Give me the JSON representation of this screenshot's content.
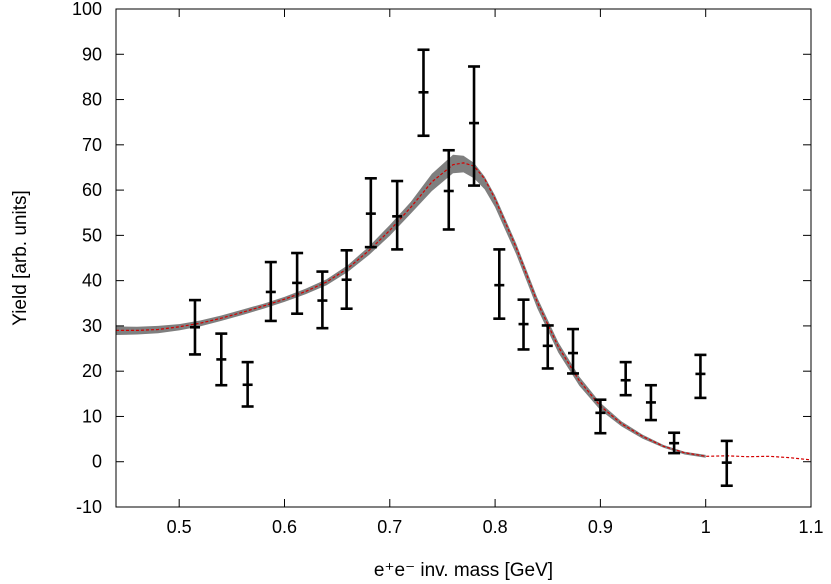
{
  "chart_data": {
    "type": "scatter",
    "title": "",
    "xlabel": "e⁺e⁻ inv. mass [GeV]",
    "ylabel": "Yield [arb. units]",
    "xlim": [
      0.44,
      1.1
    ],
    "ylim": [
      -10,
      100
    ],
    "x_ticks": [
      0.5,
      0.6,
      0.7,
      0.8,
      0.9,
      1,
      1.1
    ],
    "x_tick_labels": [
      "0.5",
      "0.6",
      "0.7",
      "0.8",
      "0.9",
      "1",
      "1.1"
    ],
    "y_ticks": [
      -10,
      0,
      10,
      20,
      30,
      40,
      50,
      60,
      70,
      80,
      90,
      100
    ],
    "y_tick_labels": [
      "-10",
      "0",
      "10",
      "20",
      "30",
      "40",
      "50",
      "60",
      "70",
      "80",
      "90",
      "100"
    ],
    "grid": false,
    "legend": "none",
    "points": [
      {
        "x": 0.515,
        "y": 29.7,
        "ylo": 23.7,
        "yhi": 35.7
      },
      {
        "x": 0.54,
        "y": 22.6,
        "ylo": 16.9,
        "yhi": 28.3
      },
      {
        "x": 0.565,
        "y": 17.0,
        "ylo": 12.2,
        "yhi": 22.0
      },
      {
        "x": 0.587,
        "y": 37.5,
        "ylo": 31.1,
        "yhi": 44.1
      },
      {
        "x": 0.612,
        "y": 39.5,
        "ylo": 32.7,
        "yhi": 46.1
      },
      {
        "x": 0.636,
        "y": 35.6,
        "ylo": 29.5,
        "yhi": 42.0
      },
      {
        "x": 0.659,
        "y": 40.2,
        "ylo": 33.8,
        "yhi": 46.7
      },
      {
        "x": 0.682,
        "y": 54.8,
        "ylo": 47.4,
        "yhi": 62.6
      },
      {
        "x": 0.707,
        "y": 54.2,
        "ylo": 46.9,
        "yhi": 62.0
      },
      {
        "x": 0.732,
        "y": 81.6,
        "ylo": 72.0,
        "yhi": 91.0
      },
      {
        "x": 0.756,
        "y": 59.8,
        "ylo": 51.3,
        "yhi": 68.8
      },
      {
        "x": 0.78,
        "y": 74.8,
        "ylo": 61.0,
        "yhi": 87.3
      },
      {
        "x": 0.804,
        "y": 39.0,
        "ylo": 31.6,
        "yhi": 46.9
      },
      {
        "x": 0.827,
        "y": 30.4,
        "ylo": 24.8,
        "yhi": 35.8
      },
      {
        "x": 0.85,
        "y": 25.6,
        "ylo": 20.6,
        "yhi": 30.1
      },
      {
        "x": 0.874,
        "y": 24.0,
        "ylo": 19.5,
        "yhi": 29.3
      },
      {
        "x": 0.9,
        "y": 10.8,
        "ylo": 6.3,
        "yhi": 13.7
      },
      {
        "x": 0.924,
        "y": 18.0,
        "ylo": 14.7,
        "yhi": 22.0
      },
      {
        "x": 0.948,
        "y": 13.1,
        "ylo": 9.2,
        "yhi": 16.9
      },
      {
        "x": 0.97,
        "y": 4.1,
        "ylo": 1.9,
        "yhi": 6.4
      },
      {
        "x": 0.995,
        "y": 19.4,
        "ylo": 14.1,
        "yhi": 23.6
      },
      {
        "x": 1.02,
        "y": -0.2,
        "ylo": -5.3,
        "yhi": 4.6
      }
    ],
    "band": {
      "color": "#7f7f7f",
      "x": [
        0.44,
        0.46,
        0.48,
        0.5,
        0.52,
        0.54,
        0.56,
        0.58,
        0.6,
        0.62,
        0.64,
        0.66,
        0.68,
        0.7,
        0.72,
        0.74,
        0.76,
        0.77,
        0.78,
        0.79,
        0.8,
        0.82,
        0.84,
        0.86,
        0.88,
        0.9,
        0.92,
        0.94,
        0.96,
        0.98,
        1.0
      ],
      "lower": [
        28.0,
        28.1,
        28.4,
        29.0,
        29.9,
        31.1,
        32.4,
        33.8,
        35.3,
        37.0,
        39.0,
        41.9,
        45.6,
        49.9,
        54.8,
        59.8,
        63.7,
        63.9,
        62.6,
        60.2,
        56.2,
        45.8,
        33.9,
        24.1,
        16.8,
        11.4,
        7.8,
        5.1,
        3.1,
        1.6,
        0.9
      ],
      "upper": [
        29.9,
        29.8,
        30.0,
        30.4,
        31.2,
        32.3,
        33.6,
        34.9,
        36.4,
        38.2,
        40.3,
        43.4,
        47.5,
        52.3,
        57.4,
        63.6,
        67.8,
        67.6,
        66.0,
        63.0,
        58.8,
        48.2,
        36.3,
        26.4,
        18.8,
        13.0,
        8.9,
        6.0,
        3.7,
        2.2,
        1.5
      ]
    },
    "curve": {
      "color": "#d40000",
      "style": "dashed",
      "x": [
        0.44,
        0.46,
        0.48,
        0.5,
        0.52,
        0.54,
        0.56,
        0.58,
        0.6,
        0.62,
        0.64,
        0.66,
        0.68,
        0.7,
        0.72,
        0.74,
        0.76,
        0.77,
        0.78,
        0.79,
        0.8,
        0.82,
        0.84,
        0.86,
        0.88,
        0.9,
        0.92,
        0.94,
        0.96,
        0.98,
        1.0,
        1.02,
        1.04,
        1.06,
        1.08,
        1.1
      ],
      "y": [
        29.0,
        29.0,
        29.2,
        29.8,
        30.6,
        31.7,
        33.0,
        34.4,
        35.9,
        37.6,
        39.7,
        42.7,
        46.6,
        51.1,
        56.2,
        61.8,
        65.6,
        66.0,
        65.3,
        62.5,
        58.0,
        47.3,
        35.3,
        25.4,
        17.9,
        12.3,
        8.4,
        5.6,
        3.4,
        2.0,
        1.2,
        1.3,
        1.1,
        1.2,
        0.9,
        0.4
      ]
    }
  }
}
